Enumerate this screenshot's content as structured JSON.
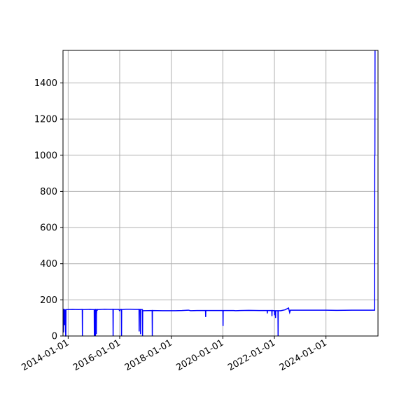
{
  "colors": {
    "series": "#0000ff",
    "grid": "#b0b0b0",
    "axis": "#000000",
    "background": "#ffffff"
  },
  "chart_data": {
    "type": "line",
    "title": "",
    "xlabel": "",
    "ylabel": "",
    "x_axis": "date",
    "xlim": [
      "2013-10-20",
      "2026-01-07"
    ],
    "ylim": [
      0,
      1580
    ],
    "grid": true,
    "legend": "none",
    "xticks": [
      "2014-01-01",
      "2016-01-01",
      "2018-01-01",
      "2020-01-01",
      "2022-01-01",
      "2024-01-01"
    ],
    "yticks": [
      0,
      200,
      400,
      600,
      800,
      1000,
      1200,
      1400
    ],
    "series": [
      {
        "color": "#0000ff",
        "points": [
          [
            "2013-10-20",
            147
          ],
          [
            "2013-10-25",
            145
          ],
          [
            "2013-10-28",
            20
          ],
          [
            "2013-11-01",
            147
          ],
          [
            "2013-11-10",
            146
          ],
          [
            "2013-11-14",
            60
          ],
          [
            "2013-11-18",
            147
          ],
          [
            "2013-11-24",
            100
          ],
          [
            "2013-11-27",
            0
          ],
          [
            "2013-11-29",
            0
          ],
          [
            "2013-12-01",
            146
          ],
          [
            "2014-03-01",
            147
          ],
          [
            "2014-06-01",
            146
          ],
          [
            "2014-07-20",
            147
          ],
          [
            "2014-07-22",
            0
          ],
          [
            "2014-07-24",
            146
          ],
          [
            "2014-11-01",
            147
          ],
          [
            "2015-01-05",
            146
          ],
          [
            "2015-01-07",
            0
          ],
          [
            "2015-01-09",
            146
          ],
          [
            "2015-01-20",
            147
          ],
          [
            "2015-01-22",
            0
          ],
          [
            "2015-01-24",
            146
          ],
          [
            "2015-02-02",
            146
          ],
          [
            "2015-02-04",
            10
          ],
          [
            "2015-02-06",
            120
          ],
          [
            "2015-02-10",
            146
          ],
          [
            "2015-02-15",
            146
          ],
          [
            "2015-02-17",
            140
          ],
          [
            "2015-02-19",
            147
          ],
          [
            "2015-03-10",
            146
          ],
          [
            "2015-04-10",
            147
          ],
          [
            "2015-06-01",
            148
          ],
          [
            "2015-09-01",
            147
          ],
          [
            "2015-09-28",
            148
          ],
          [
            "2015-09-30",
            0
          ],
          [
            "2015-10-02",
            147
          ],
          [
            "2015-12-20",
            147
          ],
          [
            "2016-01-01",
            140
          ],
          [
            "2016-01-10",
            147
          ],
          [
            "2016-01-25",
            147
          ],
          [
            "2016-01-27",
            0
          ],
          [
            "2016-01-29",
            146
          ],
          [
            "2016-04-01",
            148
          ],
          [
            "2016-06-01",
            148
          ],
          [
            "2016-08-01",
            147
          ],
          [
            "2016-10-01",
            147
          ],
          [
            "2016-10-03",
            25
          ],
          [
            "2016-10-05",
            147
          ],
          [
            "2016-10-20",
            146
          ],
          [
            "2016-10-22",
            10
          ],
          [
            "2016-10-24",
            147
          ],
          [
            "2016-11-18",
            146
          ],
          [
            "2016-11-20",
            0
          ],
          [
            "2016-11-22",
            140
          ],
          [
            "2016-12-10",
            140
          ],
          [
            "2017-04-05",
            141
          ],
          [
            "2017-04-07",
            0
          ],
          [
            "2017-04-09",
            141
          ],
          [
            "2017-09-01",
            140
          ],
          [
            "2018-03-01",
            140
          ],
          [
            "2018-06-01",
            141
          ],
          [
            "2018-09-01",
            143
          ],
          [
            "2018-10-01",
            140
          ],
          [
            "2019-01-01",
            141
          ],
          [
            "2019-05-01",
            141
          ],
          [
            "2019-05-03",
            105
          ],
          [
            "2019-05-05",
            141
          ],
          [
            "2019-10-01",
            141
          ],
          [
            "2019-12-25",
            141
          ],
          [
            "2020-01-02",
            141
          ],
          [
            "2020-01-04",
            55
          ],
          [
            "2020-01-06",
            141
          ],
          [
            "2020-06-01",
            141
          ],
          [
            "2020-07-01",
            140
          ],
          [
            "2020-09-01",
            141
          ],
          [
            "2021-01-01",
            142
          ],
          [
            "2021-06-01",
            141
          ],
          [
            "2021-09-20",
            141
          ],
          [
            "2021-09-22",
            125
          ],
          [
            "2021-09-24",
            141
          ],
          [
            "2021-11-25",
            141
          ],
          [
            "2021-11-27",
            110
          ],
          [
            "2021-11-29",
            141
          ],
          [
            "2022-01-01",
            140
          ],
          [
            "2022-01-03",
            115
          ],
          [
            "2022-01-05",
            140
          ],
          [
            "2022-01-15",
            140
          ],
          [
            "2022-01-17",
            100
          ],
          [
            "2022-01-19",
            140
          ],
          [
            "2022-02-20",
            140
          ],
          [
            "2022-02-22",
            0
          ],
          [
            "2022-02-24",
            140
          ],
          [
            "2022-04-01",
            140
          ],
          [
            "2022-06-01",
            145
          ],
          [
            "2022-07-20",
            155
          ],
          [
            "2022-08-05",
            130
          ],
          [
            "2022-08-15",
            143
          ],
          [
            "2023-01-01",
            143
          ],
          [
            "2023-06-01",
            143
          ],
          [
            "2024-01-01",
            143
          ],
          [
            "2024-06-01",
            142
          ],
          [
            "2025-01-01",
            143
          ],
          [
            "2025-06-01",
            143
          ],
          [
            "2025-11-20",
            143
          ],
          [
            "2025-11-22",
            1000
          ],
          [
            "2025-11-24",
            1000
          ],
          [
            "2025-11-26",
            1580
          ]
        ]
      }
    ]
  }
}
